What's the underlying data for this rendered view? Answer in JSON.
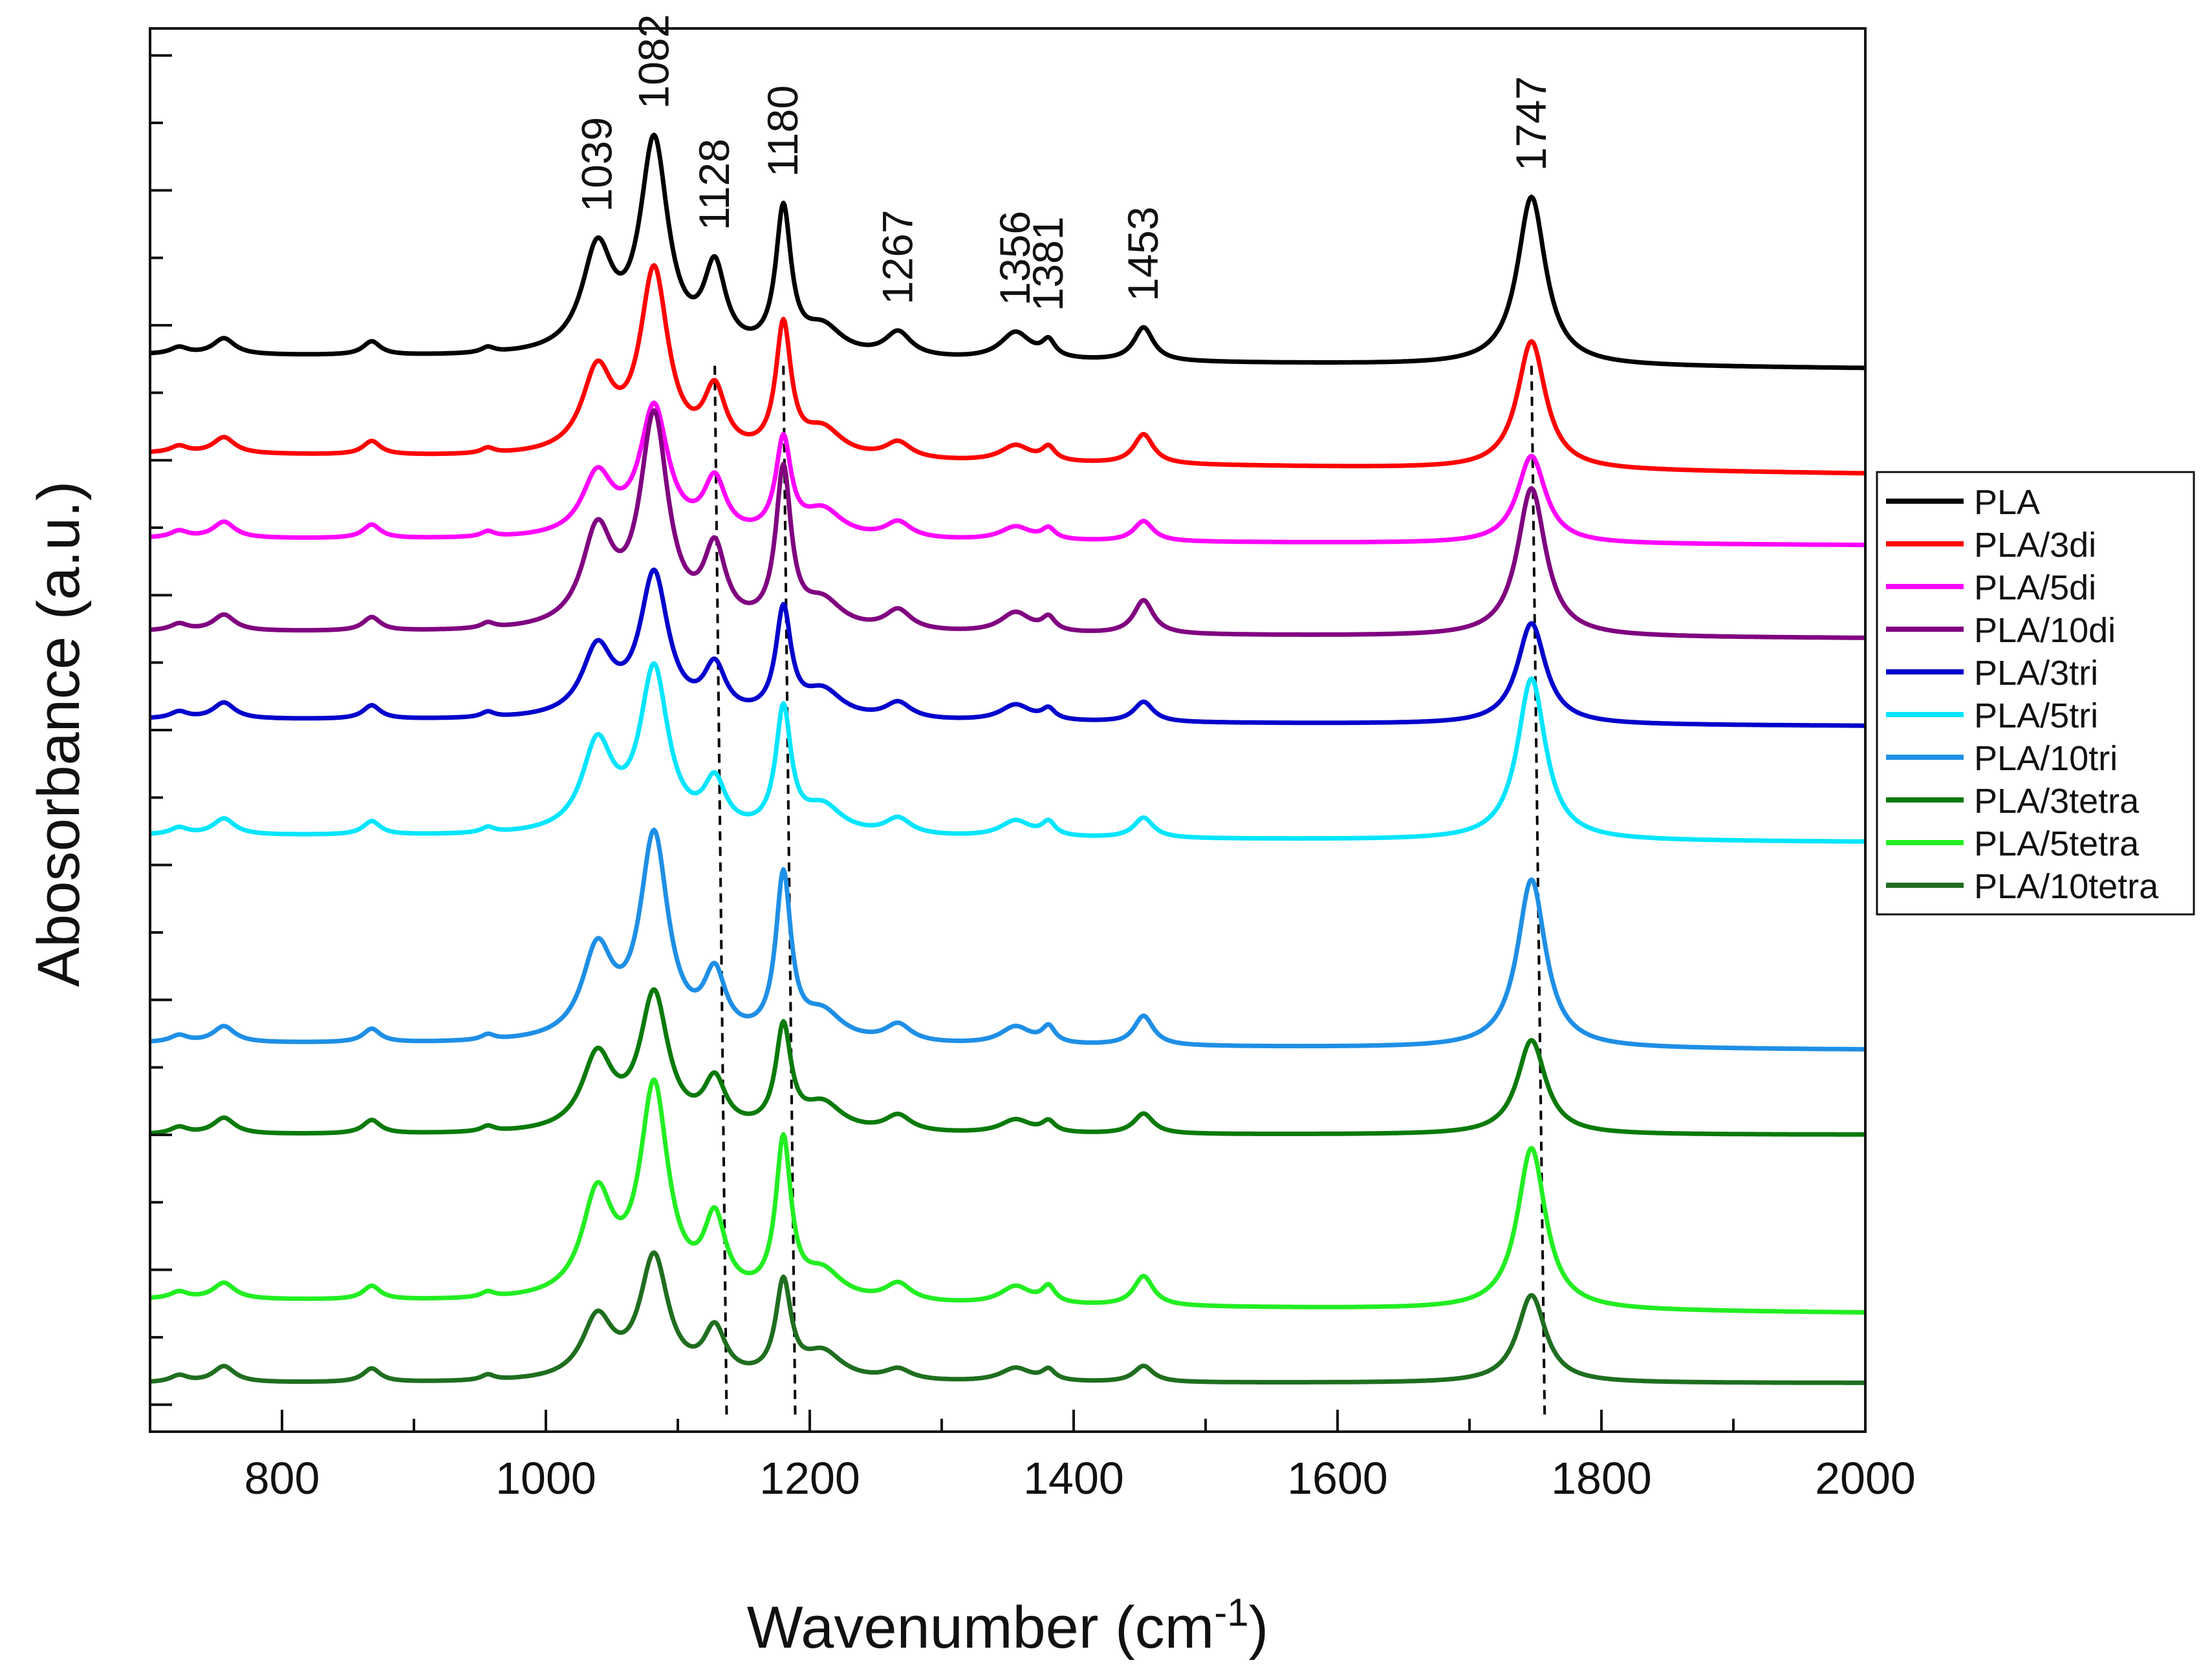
{
  "chart_data": {
    "type": "line",
    "title": "",
    "xlabel_main": "Wavenumber (cm",
    "xlabel_sup": "-1",
    "xlabel_close": ")",
    "ylabel": "Abosorbance (a.u.)",
    "xlim": [
      700,
      2000
    ],
    "ylim": [
      0,
      10.4
    ],
    "xticks": [
      800,
      1000,
      1200,
      1400,
      1600,
      1800,
      2000
    ],
    "xtick_labels": [
      "800",
      "1000",
      "1200",
      "1400",
      "1600",
      "1800",
      "2000"
    ],
    "peaks": [
      {
        "pos": 1039,
        "w": 14,
        "label": "1039"
      },
      {
        "pos": 1082,
        "w": 13,
        "label": "1082"
      },
      {
        "pos": 1128,
        "w": 10,
        "label": "1128"
      },
      {
        "pos": 1180,
        "w": 7,
        "label": "1180"
      },
      {
        "pos": 1267,
        "w": 12,
        "label": "1267"
      },
      {
        "pos": 1356,
        "w": 14,
        "label": "1356"
      },
      {
        "pos": 1381,
        "w": 6,
        "label": "1381"
      },
      {
        "pos": 1453,
        "w": 9,
        "label": "1453"
      },
      {
        "pos": 1747,
        "w": 13,
        "label": "1747"
      }
    ],
    "guide_lines": [
      {
        "x_top": 1128,
        "x_bottom": 1137
      },
      {
        "x_top": 1180,
        "x_bottom": 1189
      },
      {
        "x_top": 1747,
        "x_bottom": 1757
      }
    ],
    "series": [
      {
        "name": "PLA",
        "color": "#000000",
        "baseline": 7.98,
        "drift": -0.1,
        "amps": [
          0.75,
          1.55,
          0.6,
          1.05,
          0.18,
          0.2,
          0.12,
          0.25,
          1.25
        ]
      },
      {
        "name": "PLA/3di",
        "color": "#ff0000",
        "baseline": 7.25,
        "drift": -0.15,
        "amps": [
          0.6,
          1.35,
          0.45,
          0.95,
          0.12,
          0.12,
          0.1,
          0.22,
          0.95
        ]
      },
      {
        "name": "PLA/5di",
        "color": "#ff00ff",
        "baseline": 6.62,
        "drift": -0.05,
        "amps": [
          0.45,
          0.95,
          0.4,
          0.7,
          0.12,
          0.1,
          0.08,
          0.15,
          0.65
        ]
      },
      {
        "name": "PLA/10di",
        "color": "#800080",
        "baseline": 5.93,
        "drift": -0.05,
        "amps": [
          0.7,
          1.55,
          0.55,
          1.15,
          0.15,
          0.15,
          0.1,
          0.25,
          1.1
        ]
      },
      {
        "name": "PLA/3tri",
        "color": "#0000cc",
        "baseline": 5.28,
        "drift": -0.05,
        "amps": [
          0.5,
          1.05,
          0.35,
          0.78,
          0.12,
          0.12,
          0.08,
          0.15,
          0.75
        ]
      },
      {
        "name": "PLA/5tri",
        "color": "#00e5ff",
        "baseline": 4.42,
        "drift": -0.05,
        "amps": [
          0.65,
          1.2,
          0.35,
          0.9,
          0.12,
          0.12,
          0.1,
          0.15,
          1.2
        ]
      },
      {
        "name": "PLA/10tri",
        "color": "#1e8fe6",
        "baseline": 2.88,
        "drift": -0.05,
        "amps": [
          0.65,
          1.5,
          0.45,
          1.2,
          0.13,
          0.13,
          0.12,
          0.22,
          1.25
        ]
      },
      {
        "name": "PLA/3tetra",
        "color": "#0a7a0a",
        "baseline": 2.2,
        "drift": 0.0,
        "amps": [
          0.55,
          1.0,
          0.35,
          0.75,
          0.12,
          0.1,
          0.08,
          0.15,
          0.7
        ]
      },
      {
        "name": "PLA/5tetra",
        "color": "#22ee22",
        "baseline": 0.98,
        "drift": -0.1,
        "amps": [
          0.75,
          1.55,
          0.55,
          1.15,
          0.13,
          0.13,
          0.12,
          0.22,
          1.2
        ]
      },
      {
        "name": "PLA/10tetra",
        "color": "#1f6e1f",
        "baseline": 0.36,
        "drift": 0.0,
        "amps": [
          0.45,
          0.9,
          0.35,
          0.7,
          0.08,
          0.1,
          0.08,
          0.12,
          0.65
        ]
      }
    ]
  }
}
